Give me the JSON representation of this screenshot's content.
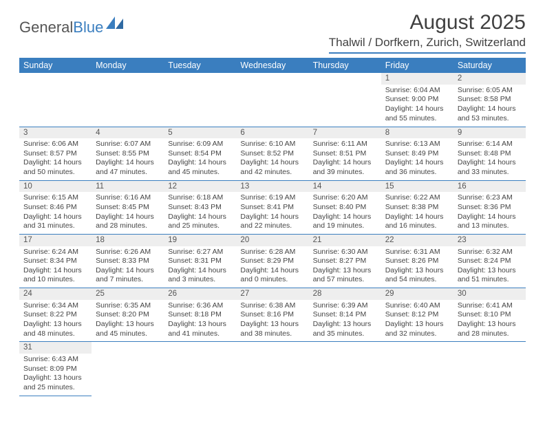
{
  "logo": {
    "part1": "General",
    "part2": "Blue",
    "shape_color": "#3a7ebf"
  },
  "title": "August 2025",
  "location": "Thalwil / Dorfkern, Zurich, Switzerland",
  "colors": {
    "header_bar": "#3a7ebf",
    "daynum_bg": "#eeeeee",
    "border": "#3a7ebf",
    "text": "#333333"
  },
  "weekdays": [
    "Sunday",
    "Monday",
    "Tuesday",
    "Wednesday",
    "Thursday",
    "Friday",
    "Saturday"
  ],
  "leading_blanks": 5,
  "days": [
    {
      "n": "1",
      "sunrise": "Sunrise: 6:04 AM",
      "sunset": "Sunset: 9:00 PM",
      "d1": "Daylight: 14 hours",
      "d2": "and 55 minutes."
    },
    {
      "n": "2",
      "sunrise": "Sunrise: 6:05 AM",
      "sunset": "Sunset: 8:58 PM",
      "d1": "Daylight: 14 hours",
      "d2": "and 53 minutes."
    },
    {
      "n": "3",
      "sunrise": "Sunrise: 6:06 AM",
      "sunset": "Sunset: 8:57 PM",
      "d1": "Daylight: 14 hours",
      "d2": "and 50 minutes."
    },
    {
      "n": "4",
      "sunrise": "Sunrise: 6:07 AM",
      "sunset": "Sunset: 8:55 PM",
      "d1": "Daylight: 14 hours",
      "d2": "and 47 minutes."
    },
    {
      "n": "5",
      "sunrise": "Sunrise: 6:09 AM",
      "sunset": "Sunset: 8:54 PM",
      "d1": "Daylight: 14 hours",
      "d2": "and 45 minutes."
    },
    {
      "n": "6",
      "sunrise": "Sunrise: 6:10 AM",
      "sunset": "Sunset: 8:52 PM",
      "d1": "Daylight: 14 hours",
      "d2": "and 42 minutes."
    },
    {
      "n": "7",
      "sunrise": "Sunrise: 6:11 AM",
      "sunset": "Sunset: 8:51 PM",
      "d1": "Daylight: 14 hours",
      "d2": "and 39 minutes."
    },
    {
      "n": "8",
      "sunrise": "Sunrise: 6:13 AM",
      "sunset": "Sunset: 8:49 PM",
      "d1": "Daylight: 14 hours",
      "d2": "and 36 minutes."
    },
    {
      "n": "9",
      "sunrise": "Sunrise: 6:14 AM",
      "sunset": "Sunset: 8:48 PM",
      "d1": "Daylight: 14 hours",
      "d2": "and 33 minutes."
    },
    {
      "n": "10",
      "sunrise": "Sunrise: 6:15 AM",
      "sunset": "Sunset: 8:46 PM",
      "d1": "Daylight: 14 hours",
      "d2": "and 31 minutes."
    },
    {
      "n": "11",
      "sunrise": "Sunrise: 6:16 AM",
      "sunset": "Sunset: 8:45 PM",
      "d1": "Daylight: 14 hours",
      "d2": "and 28 minutes."
    },
    {
      "n": "12",
      "sunrise": "Sunrise: 6:18 AM",
      "sunset": "Sunset: 8:43 PM",
      "d1": "Daylight: 14 hours",
      "d2": "and 25 minutes."
    },
    {
      "n": "13",
      "sunrise": "Sunrise: 6:19 AM",
      "sunset": "Sunset: 8:41 PM",
      "d1": "Daylight: 14 hours",
      "d2": "and 22 minutes."
    },
    {
      "n": "14",
      "sunrise": "Sunrise: 6:20 AM",
      "sunset": "Sunset: 8:40 PM",
      "d1": "Daylight: 14 hours",
      "d2": "and 19 minutes."
    },
    {
      "n": "15",
      "sunrise": "Sunrise: 6:22 AM",
      "sunset": "Sunset: 8:38 PM",
      "d1": "Daylight: 14 hours",
      "d2": "and 16 minutes."
    },
    {
      "n": "16",
      "sunrise": "Sunrise: 6:23 AM",
      "sunset": "Sunset: 8:36 PM",
      "d1": "Daylight: 14 hours",
      "d2": "and 13 minutes."
    },
    {
      "n": "17",
      "sunrise": "Sunrise: 6:24 AM",
      "sunset": "Sunset: 8:34 PM",
      "d1": "Daylight: 14 hours",
      "d2": "and 10 minutes."
    },
    {
      "n": "18",
      "sunrise": "Sunrise: 6:26 AM",
      "sunset": "Sunset: 8:33 PM",
      "d1": "Daylight: 14 hours",
      "d2": "and 7 minutes."
    },
    {
      "n": "19",
      "sunrise": "Sunrise: 6:27 AM",
      "sunset": "Sunset: 8:31 PM",
      "d1": "Daylight: 14 hours",
      "d2": "and 3 minutes."
    },
    {
      "n": "20",
      "sunrise": "Sunrise: 6:28 AM",
      "sunset": "Sunset: 8:29 PM",
      "d1": "Daylight: 14 hours",
      "d2": "and 0 minutes."
    },
    {
      "n": "21",
      "sunrise": "Sunrise: 6:30 AM",
      "sunset": "Sunset: 8:27 PM",
      "d1": "Daylight: 13 hours",
      "d2": "and 57 minutes."
    },
    {
      "n": "22",
      "sunrise": "Sunrise: 6:31 AM",
      "sunset": "Sunset: 8:26 PM",
      "d1": "Daylight: 13 hours",
      "d2": "and 54 minutes."
    },
    {
      "n": "23",
      "sunrise": "Sunrise: 6:32 AM",
      "sunset": "Sunset: 8:24 PM",
      "d1": "Daylight: 13 hours",
      "d2": "and 51 minutes."
    },
    {
      "n": "24",
      "sunrise": "Sunrise: 6:34 AM",
      "sunset": "Sunset: 8:22 PM",
      "d1": "Daylight: 13 hours",
      "d2": "and 48 minutes."
    },
    {
      "n": "25",
      "sunrise": "Sunrise: 6:35 AM",
      "sunset": "Sunset: 8:20 PM",
      "d1": "Daylight: 13 hours",
      "d2": "and 45 minutes."
    },
    {
      "n": "26",
      "sunrise": "Sunrise: 6:36 AM",
      "sunset": "Sunset: 8:18 PM",
      "d1": "Daylight: 13 hours",
      "d2": "and 41 minutes."
    },
    {
      "n": "27",
      "sunrise": "Sunrise: 6:38 AM",
      "sunset": "Sunset: 8:16 PM",
      "d1": "Daylight: 13 hours",
      "d2": "and 38 minutes."
    },
    {
      "n": "28",
      "sunrise": "Sunrise: 6:39 AM",
      "sunset": "Sunset: 8:14 PM",
      "d1": "Daylight: 13 hours",
      "d2": "and 35 minutes."
    },
    {
      "n": "29",
      "sunrise": "Sunrise: 6:40 AM",
      "sunset": "Sunset: 8:12 PM",
      "d1": "Daylight: 13 hours",
      "d2": "and 32 minutes."
    },
    {
      "n": "30",
      "sunrise": "Sunrise: 6:41 AM",
      "sunset": "Sunset: 8:10 PM",
      "d1": "Daylight: 13 hours",
      "d2": "and 28 minutes."
    },
    {
      "n": "31",
      "sunrise": "Sunrise: 6:43 AM",
      "sunset": "Sunset: 8:09 PM",
      "d1": "Daylight: 13 hours",
      "d2": "and 25 minutes."
    }
  ]
}
